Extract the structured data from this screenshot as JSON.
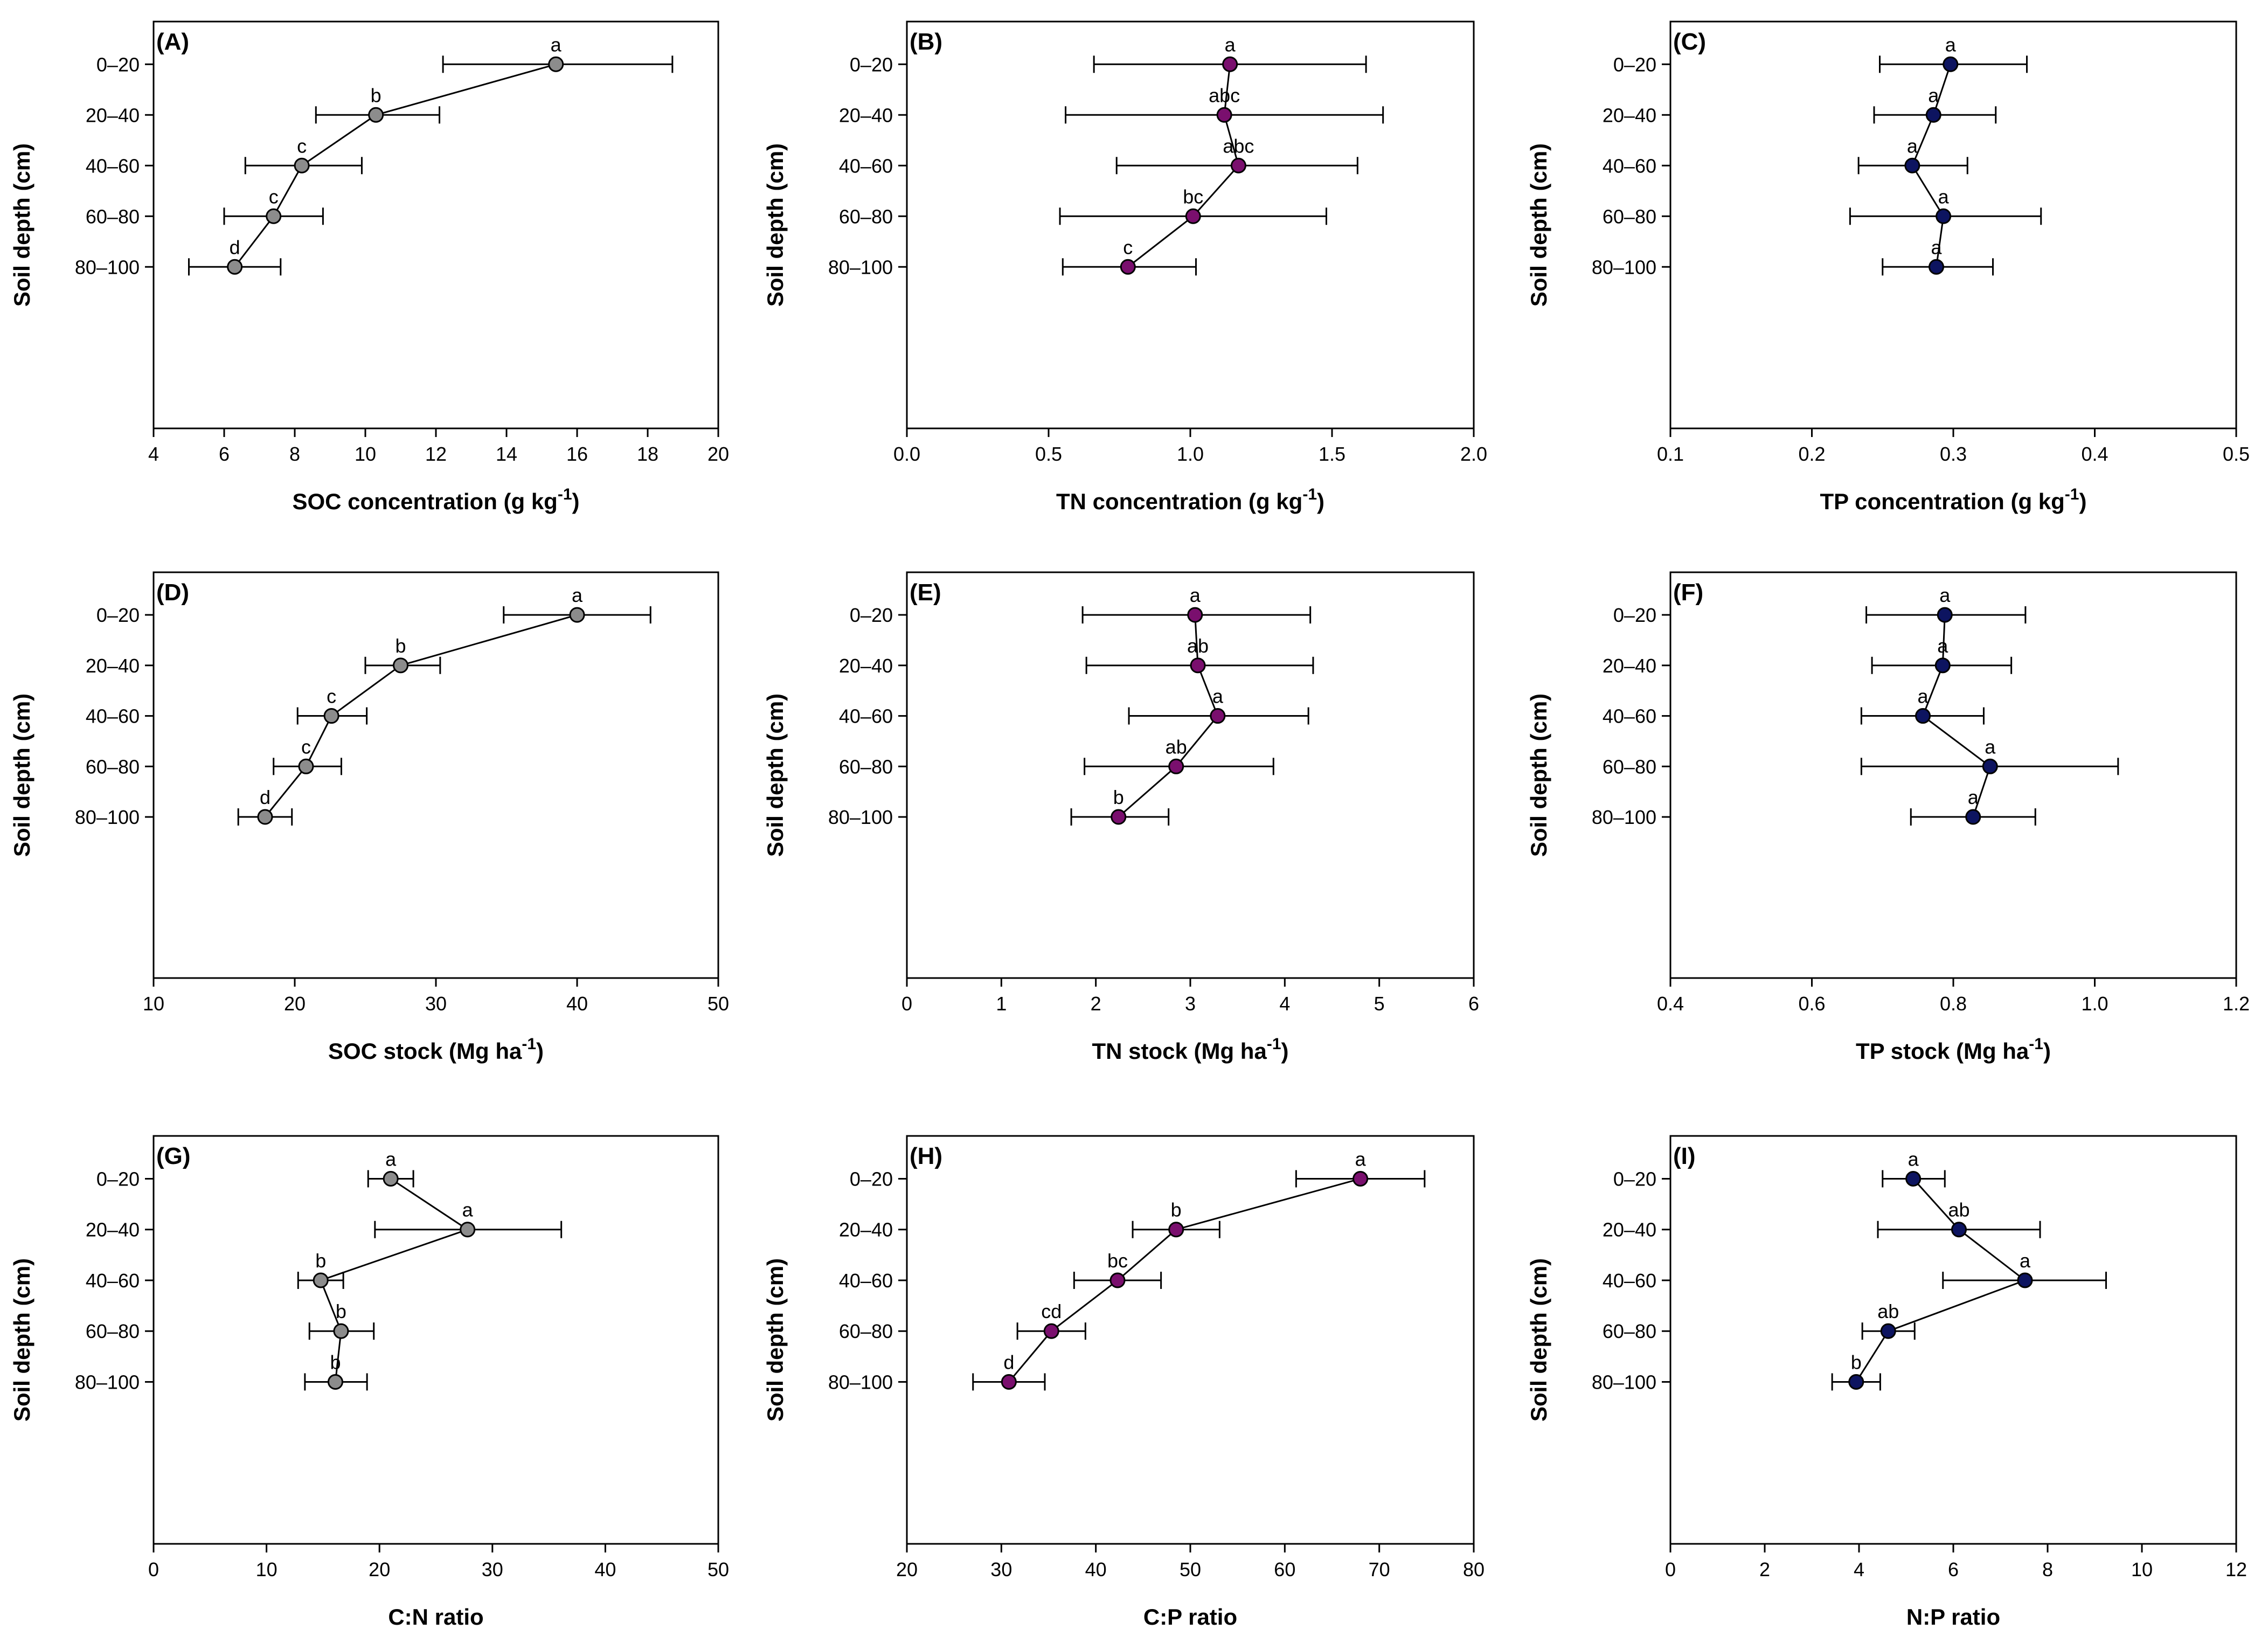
{
  "figure": {
    "y_axis_label": "Soil depth (cm)"
  },
  "colors": {
    "gray": "#8c8c8c",
    "purple": "#7a0f6e",
    "navy": "#0d1460",
    "line": "#000000"
  },
  "chart_data": [
    {
      "panel": "(A)",
      "type": "scatter",
      "categories": [
        "0–20",
        "20–40",
        "40–60",
        "60–80",
        "80–100"
      ],
      "xlabel": "SOC concentration (g kg",
      "xlabel_sup": "-1",
      "xlabel_end": ")",
      "ylabel": "Soil depth (cm)",
      "xlim": [
        4,
        20
      ],
      "xticks": [
        "4",
        "6",
        "8",
        "10",
        "12",
        "14",
        "16",
        "18",
        "20"
      ],
      "xtick_values": [
        4,
        6,
        8,
        10,
        12,
        14,
        16,
        18,
        20
      ],
      "values": [
        15.4,
        10.3,
        8.2,
        7.4,
        6.3
      ],
      "err_low": [
        12.2,
        8.6,
        6.6,
        6.0,
        5.0
      ],
      "err_high": [
        18.7,
        12.1,
        9.9,
        8.8,
        7.6
      ],
      "letters": [
        "a",
        "b",
        "c",
        "c",
        "d"
      ],
      "color": "gray"
    },
    {
      "panel": "(B)",
      "type": "scatter",
      "categories": [
        "0–20",
        "20–40",
        "40–60",
        "60–80",
        "80–100"
      ],
      "xlabel": "TN concentration (g kg",
      "xlabel_sup": "-1",
      "xlabel_end": ")",
      "ylabel": "Soil depth (cm)",
      "xlim": [
        0,
        2
      ],
      "xticks": [
        "0.0",
        "0.5",
        "1.0",
        "1.5",
        "2.0"
      ],
      "xtick_values": [
        0,
        0.5,
        1,
        1.5,
        2
      ],
      "values": [
        1.14,
        1.12,
        1.17,
        1.01,
        0.78
      ],
      "err_low": [
        0.66,
        0.56,
        0.74,
        0.54,
        0.55
      ],
      "err_high": [
        1.62,
        1.68,
        1.59,
        1.48,
        1.02
      ],
      "letters": [
        "a",
        "abc",
        "abc",
        "bc",
        "c"
      ],
      "color": "purple"
    },
    {
      "panel": "(C)",
      "type": "scatter",
      "categories": [
        "0–20",
        "20–40",
        "40–60",
        "60–80",
        "80–100"
      ],
      "xlabel": "TP concentration (g kg",
      "xlabel_sup": "-1",
      "xlabel_end": ")",
      "ylabel": "Soil depth (cm)",
      "xlim": [
        0.1,
        0.5
      ],
      "xticks": [
        "0.1",
        "0.2",
        "0.3",
        "0.4",
        "0.5"
      ],
      "xtick_values": [
        0.1,
        0.2,
        0.3,
        0.4,
        0.5
      ],
      "values": [
        0.298,
        0.286,
        0.271,
        0.293,
        0.288
      ],
      "err_low": [
        0.248,
        0.244,
        0.233,
        0.227,
        0.25
      ],
      "err_high": [
        0.352,
        0.33,
        0.31,
        0.362,
        0.328
      ],
      "letters": [
        "a",
        "a",
        "a",
        "a",
        "a"
      ],
      "color": "navy"
    },
    {
      "panel": "(D)",
      "type": "scatter",
      "categories": [
        "0–20",
        "20–40",
        "40–60",
        "60–80",
        "80–100"
      ],
      "xlabel": "SOC stock (Mg ha",
      "xlabel_sup": "-1",
      "xlabel_end": ")",
      "ylabel": "Soil depth (cm)",
      "xlim": [
        10,
        50
      ],
      "xticks": [
        "10",
        "20",
        "30",
        "40",
        "50"
      ],
      "xtick_values": [
        10,
        20,
        30,
        40,
        50
      ],
      "values": [
        40.0,
        27.5,
        22.6,
        20.8,
        17.9
      ],
      "err_low": [
        34.8,
        25.0,
        20.2,
        18.5,
        16.0
      ],
      "err_high": [
        45.2,
        30.3,
        25.1,
        23.3,
        19.8
      ],
      "letters": [
        "a",
        "b",
        "c",
        "c",
        "d"
      ],
      "color": "gray"
    },
    {
      "panel": "(E)",
      "type": "scatter",
      "categories": [
        "0–20",
        "20–40",
        "40–60",
        "60–80",
        "80–100"
      ],
      "xlabel": "TN stock (Mg ha",
      "xlabel_sup": "-1",
      "xlabel_end": ")",
      "ylabel": "Soil depth (cm)",
      "xlim": [
        0,
        6
      ],
      "xticks": [
        "0",
        "1",
        "2",
        "3",
        "4",
        "5",
        "6"
      ],
      "xtick_values": [
        0,
        1,
        2,
        3,
        4,
        5,
        6
      ],
      "values": [
        3.05,
        3.08,
        3.29,
        2.85,
        2.24
      ],
      "err_low": [
        1.86,
        1.9,
        2.35,
        1.88,
        1.74
      ],
      "err_high": [
        4.27,
        4.3,
        4.25,
        3.88,
        2.77
      ],
      "letters": [
        "a",
        "ab",
        "a",
        "ab",
        "b"
      ],
      "color": "purple"
    },
    {
      "panel": "(F)",
      "type": "scatter",
      "categories": [
        "0–20",
        "20–40",
        "40–60",
        "60–80",
        "80–100"
      ],
      "xlabel": "TP stock (Mg ha",
      "xlabel_sup": "-1",
      "xlabel_end": ")",
      "ylabel": "Soil depth (cm)",
      "xlim": [
        0.4,
        1.2
      ],
      "xticks": [
        "0.4",
        "0.6",
        "0.8",
        "1.0",
        "1.2"
      ],
      "xtick_values": [
        0.4,
        0.6,
        0.8,
        1.0,
        1.2
      ],
      "values": [
        0.788,
        0.785,
        0.757,
        0.852,
        0.828
      ],
      "err_low": [
        0.677,
        0.685,
        0.67,
        0.67,
        0.74
      ],
      "err_high": [
        0.902,
        0.882,
        0.843,
        1.033,
        0.916
      ],
      "letters": [
        "a",
        "a",
        "a",
        "a",
        "a"
      ],
      "color": "navy"
    },
    {
      "panel": "(G)",
      "type": "scatter",
      "categories": [
        "0–20",
        "20–40",
        "40–60",
        "60–80",
        "80–100"
      ],
      "xlabel": "C:N ratio",
      "xlabel_sup": "",
      "xlabel_end": "",
      "ylabel": "Soil depth (cm)",
      "xlim": [
        0,
        50
      ],
      "xticks": [
        "0",
        "10",
        "20",
        "30",
        "40",
        "50"
      ],
      "xtick_values": [
        0,
        10,
        20,
        30,
        40,
        50
      ],
      "values": [
        21.0,
        27.8,
        14.8,
        16.6,
        16.1
      ],
      "err_low": [
        19.0,
        19.6,
        12.8,
        13.8,
        13.4
      ],
      "err_high": [
        23.0,
        36.1,
        16.8,
        19.5,
        18.9
      ],
      "letters": [
        "a",
        "a",
        "b",
        "b",
        "b"
      ],
      "color": "gray"
    },
    {
      "panel": "(H)",
      "type": "scatter",
      "categories": [
        "0–20",
        "20–40",
        "40–60",
        "60–80",
        "80–100"
      ],
      "xlabel": "C:P ratio",
      "xlabel_sup": "",
      "xlabel_end": "",
      "ylabel": "Soil depth (cm)",
      "xlim": [
        20,
        80
      ],
      "xticks": [
        "20",
        "30",
        "40",
        "50",
        "60",
        "70",
        "80"
      ],
      "xtick_values": [
        20,
        30,
        40,
        50,
        60,
        70,
        80
      ],
      "values": [
        68.0,
        48.5,
        42.3,
        35.3,
        30.8
      ],
      "err_low": [
        61.2,
        43.9,
        37.7,
        31.7,
        27.0
      ],
      "err_high": [
        74.8,
        53.1,
        46.9,
        38.9,
        34.6
      ],
      "letters": [
        "a",
        "b",
        "bc",
        "cd",
        "d"
      ],
      "color": "purple"
    },
    {
      "panel": "(I)",
      "type": "scatter",
      "categories": [
        "0–20",
        "20–40",
        "40–60",
        "60–80",
        "80–100"
      ],
      "xlabel": "N:P ratio",
      "xlabel_sup": "",
      "xlabel_end": "",
      "ylabel": "Soil depth (cm)",
      "xlim": [
        0,
        12
      ],
      "xticks": [
        "0",
        "2",
        "4",
        "6",
        "8",
        "10",
        "12"
      ],
      "xtick_values": [
        0,
        2,
        4,
        6,
        8,
        10,
        12
      ],
      "values": [
        5.15,
        6.12,
        7.52,
        4.62,
        3.94
      ],
      "err_low": [
        4.5,
        4.4,
        5.78,
        4.07,
        3.43
      ],
      "err_high": [
        5.82,
        7.84,
        9.24,
        5.18,
        4.45
      ],
      "letters": [
        "a",
        "ab",
        "a",
        "ab",
        "b"
      ],
      "color": "navy"
    }
  ]
}
